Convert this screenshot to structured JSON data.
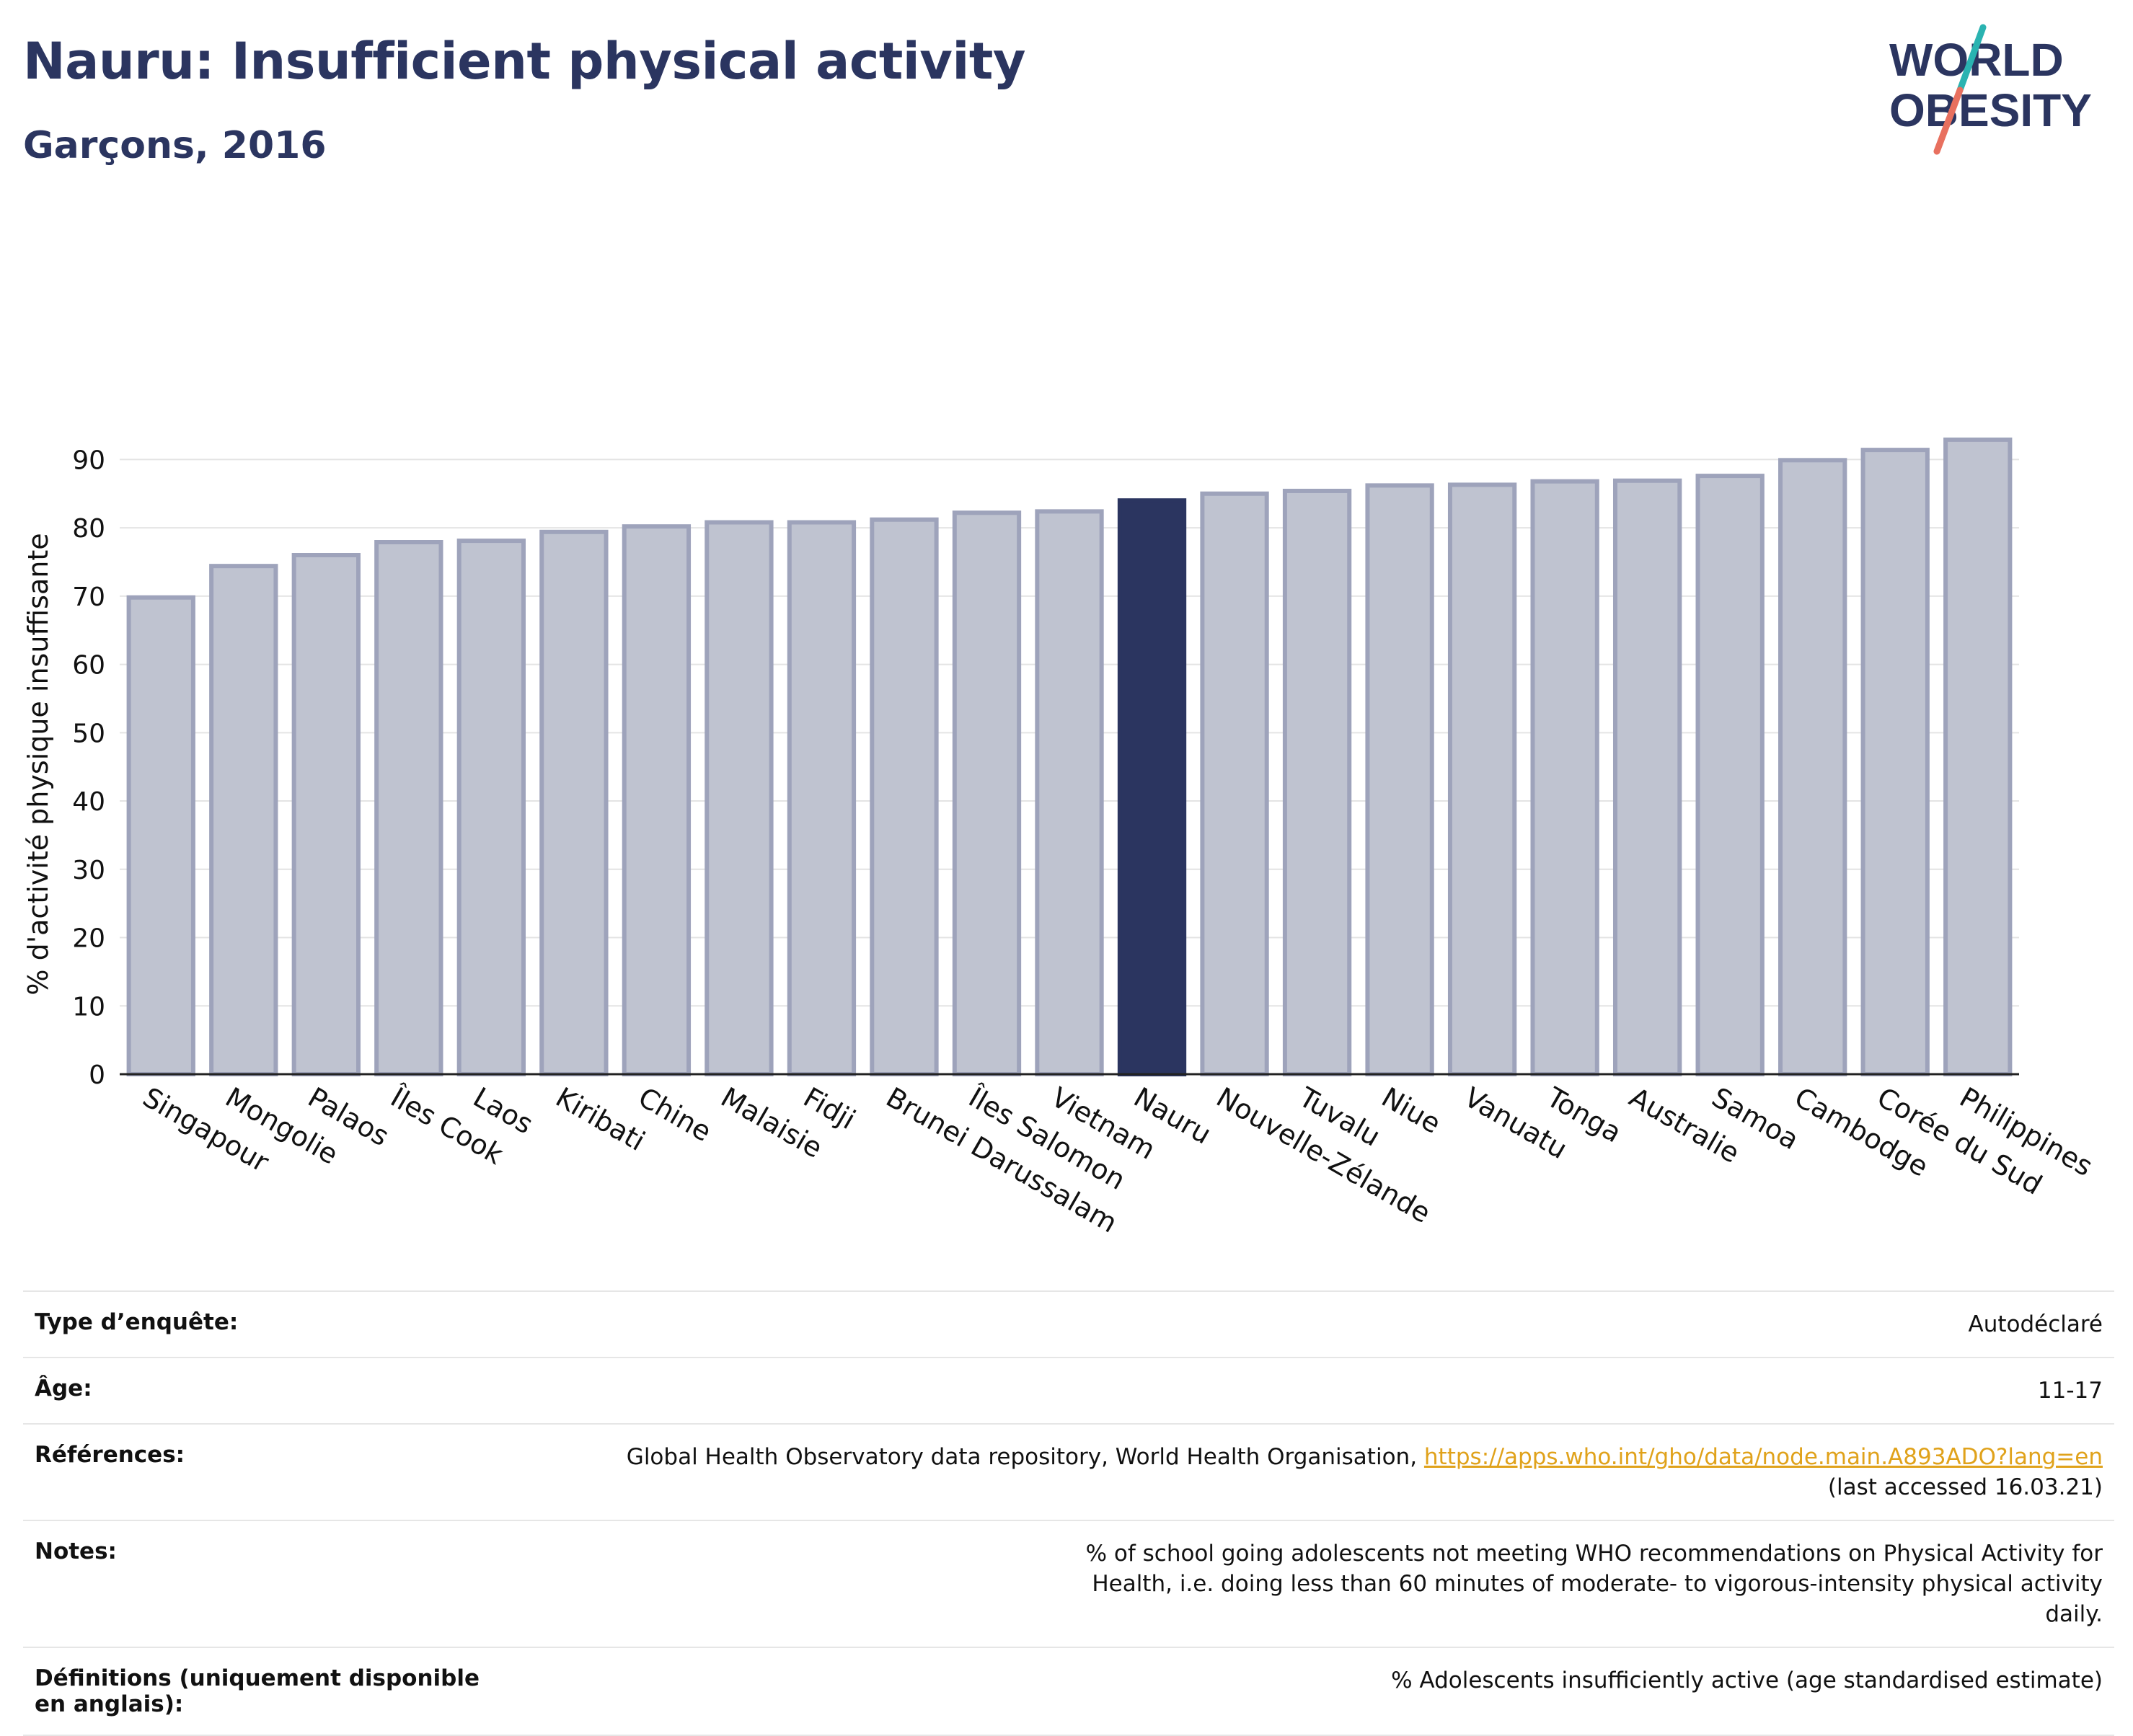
{
  "header": {
    "title": "Nauru: Insufficient physical activity",
    "subtitle": "Garçons, 2016",
    "logo_line1": "WORLD",
    "logo_line2": "OBESITY"
  },
  "colors": {
    "title": "#2b3560",
    "bar_default": "#bfc3d0",
    "bar_default_border": "#9ea3bb",
    "bar_highlight": "#2b3560",
    "link": "#e0a21b",
    "logo_teal": "#2ab3b1",
    "logo_coral": "#e8705f"
  },
  "chart_data": {
    "type": "bar",
    "ylabel": "% d'activité physique insuffisante",
    "ylim": [
      0,
      95
    ],
    "yticks": [
      0,
      10,
      20,
      30,
      40,
      50,
      60,
      70,
      80,
      90
    ],
    "grid": true,
    "highlight": "Nauru",
    "categories": [
      "Singapour",
      "Mongolie",
      "Palaos",
      "Îles Cook",
      "Laos",
      "Kiribati",
      "Chine",
      "Malaisie",
      "Fidji",
      "Brunei Darussalam",
      "Îles Salomon",
      "Vietnam",
      "Nauru",
      "Nouvelle-Zélande",
      "Tuvalu",
      "Niue",
      "Vanuatu",
      "Tonga",
      "Australie",
      "Samoa",
      "Cambodge",
      "Corée du Sud",
      "Philippines"
    ],
    "values": [
      69.8,
      74.4,
      76.0,
      77.9,
      78.1,
      79.4,
      80.2,
      80.8,
      80.8,
      81.2,
      82.2,
      82.4,
      84.0,
      85.0,
      85.4,
      86.2,
      86.3,
      86.8,
      86.9,
      87.6,
      89.9,
      91.4,
      92.9
    ]
  },
  "info": [
    {
      "label": "Type d’enquête:",
      "value": "Autodéclaré"
    },
    {
      "label": "Âge:",
      "value": "11-17"
    },
    {
      "label": "Références:",
      "value_text": "Global Health Observatory data repository, World Health Organisation, ",
      "value_link": "https://apps.who.int/gho/data/node.main.A893ADO?lang=en",
      "value_suffix": "(last accessed 16.03.21)"
    },
    {
      "label": "Notes:",
      "value": "% of school going adolescents not meeting WHO recommendations on Physical Activity for Health, i.e. doing less than 60 minutes of moderate- to vigorous-intensity physical activity daily."
    },
    {
      "label": "Définitions (uniquement disponible en anglais):",
      "value": "% Adolescents insufficiently active (age standardised estimate)"
    }
  ]
}
